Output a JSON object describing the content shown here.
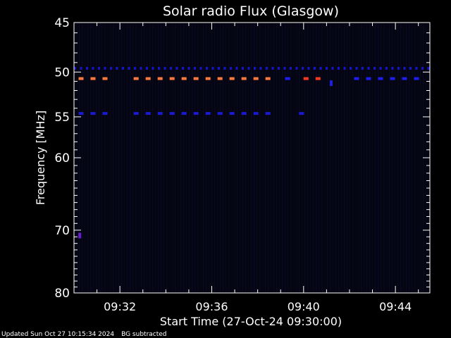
{
  "chart_data": {
    "type": "heatmap",
    "title": "Solar radio Flux (Glasgow)",
    "xlabel": "Start Time (27-Oct-24 09:30:00)",
    "ylabel": "Frequency [MHz]",
    "x_range_minutes": [
      0,
      15.5
    ],
    "x_tick_minutes": [
      2,
      6,
      10,
      14
    ],
    "x_tick_labels": [
      "09:32",
      "09:36",
      "09:40",
      "09:44"
    ],
    "y_scale": "log",
    "ylim": [
      45,
      80
    ],
    "y_ticks": [
      45,
      50,
      55,
      60,
      70,
      80
    ],
    "y_tick_labels": [
      "45",
      "50",
      "55",
      "60",
      "70",
      "80"
    ],
    "background_color": "#050512",
    "emission_lines": [
      {
        "frequency_mhz": 49.6,
        "color": "#1414c8",
        "intermittent": true,
        "segments": [
          [
            0,
            15.5
          ]
        ]
      },
      {
        "frequency_mhz": 50.7,
        "color": "#ff7a3c",
        "intermittent": true,
        "segments": [
          [
            0.2,
            1.8
          ],
          [
            2.6,
            8.8
          ]
        ]
      },
      {
        "frequency_mhz": 50.7,
        "color": "#ff3a20",
        "intermittent": true,
        "segments": [
          [
            10.0,
            10.8
          ]
        ]
      },
      {
        "frequency_mhz": 50.7,
        "color": "#1e1ef0",
        "intermittent": true,
        "segments": [
          [
            9.2,
            9.8
          ],
          [
            12.2,
            15.5
          ]
        ]
      },
      {
        "frequency_mhz": 54.6,
        "color": "#1a1ad0",
        "intermittent": true,
        "segments": [
          [
            0.2,
            1.8
          ],
          [
            2.6,
            8.8
          ],
          [
            9.8,
            10.4
          ]
        ]
      }
    ],
    "spots": [
      {
        "minute": 0.25,
        "frequency_mhz": 70.8,
        "color": "#6a1ad8"
      },
      {
        "minute": 11.2,
        "frequency_mhz": 51.2,
        "color": "#2020e0"
      }
    ]
  },
  "footer": {
    "updated": "Updated Sun Oct 27 10:15:34 2024",
    "note": "BG subtracted"
  }
}
